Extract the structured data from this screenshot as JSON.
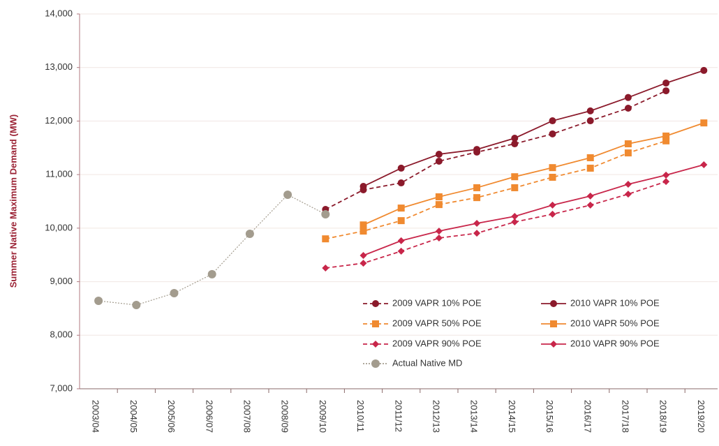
{
  "chart_data": {
    "type": "line",
    "y_label": "Summer Native Maximum Demand (MW)",
    "categories": [
      "2003/04",
      "2004/05",
      "2005/06",
      "2006/07",
      "2007/08",
      "2008/09",
      "2009/10",
      "2010/11",
      "2011/12",
      "2012/13",
      "2013/14",
      "2014/15",
      "2015/16",
      "2016/17",
      "2017/18",
      "2018/19",
      "2019/20"
    ],
    "ylim": [
      7000,
      14000
    ],
    "yticks": [
      {
        "value": 7000,
        "label": "7,000"
      },
      {
        "value": 8000,
        "label": "8,000"
      },
      {
        "value": 9000,
        "label": "9,000"
      },
      {
        "value": 10000,
        "label": "10,000"
      },
      {
        "value": 11000,
        "label": "11,000"
      },
      {
        "value": 12000,
        "label": "12,000"
      },
      {
        "value": 13000,
        "label": "13,000"
      },
      {
        "value": 14000,
        "label": "14,000"
      }
    ],
    "grid": true,
    "legend": "lower right",
    "series": [
      {
        "name": "2009 VAPR 10% POE",
        "color": "#8b1a2b",
        "linestyle": "dashed",
        "marker": "circle",
        "values": [
          null,
          null,
          null,
          null,
          null,
          null,
          10350,
          10715,
          10845,
          11250,
          11420,
          11575,
          11760,
          12005,
          12240,
          12565,
          null
        ]
      },
      {
        "name": "2010 VAPR 10% POE",
        "color": "#8b1a2b",
        "linestyle": "solid",
        "marker": "circle",
        "values": [
          null,
          null,
          null,
          null,
          null,
          null,
          null,
          10780,
          11120,
          11380,
          11470,
          11680,
          12005,
          12190,
          12440,
          12710,
          12945
        ]
      },
      {
        "name": "2009 VAPR 50% POE",
        "color": "#f08a30",
        "linestyle": "dashed",
        "marker": "square",
        "values": [
          null,
          null,
          null,
          null,
          null,
          null,
          9800,
          9945,
          10140,
          10440,
          10570,
          10755,
          10950,
          11120,
          11405,
          11630,
          null
        ]
      },
      {
        "name": "2010 VAPR 50% POE",
        "color": "#f08a30",
        "linestyle": "solid",
        "marker": "square",
        "values": [
          null,
          null,
          null,
          null,
          null,
          null,
          null,
          10060,
          10375,
          10585,
          10755,
          10960,
          11130,
          11315,
          11575,
          11720,
          11965
        ]
      },
      {
        "name": "2009 VAPR 90% POE",
        "color": "#c8264a",
        "linestyle": "dashed",
        "marker": "diamond",
        "values": [
          null,
          null,
          null,
          null,
          null,
          null,
          9255,
          9345,
          9570,
          9815,
          9905,
          10115,
          10260,
          10430,
          10635,
          10870,
          null
        ]
      },
      {
        "name": "2010 VAPR 90% POE",
        "color": "#c8264a",
        "linestyle": "solid",
        "marker": "diamond",
        "values": [
          null,
          null,
          null,
          null,
          null,
          null,
          null,
          9490,
          9765,
          9945,
          10090,
          10220,
          10430,
          10600,
          10820,
          10990,
          11185
        ]
      },
      {
        "name": "Actual Native MD",
        "color": "#a39c8e",
        "linestyle": "dotted",
        "marker": "circle",
        "values": [
          8642,
          8564,
          8786,
          9140,
          9894,
          10624,
          10259,
          null,
          null,
          null,
          null,
          null,
          null,
          null,
          null,
          null,
          null
        ]
      }
    ]
  }
}
